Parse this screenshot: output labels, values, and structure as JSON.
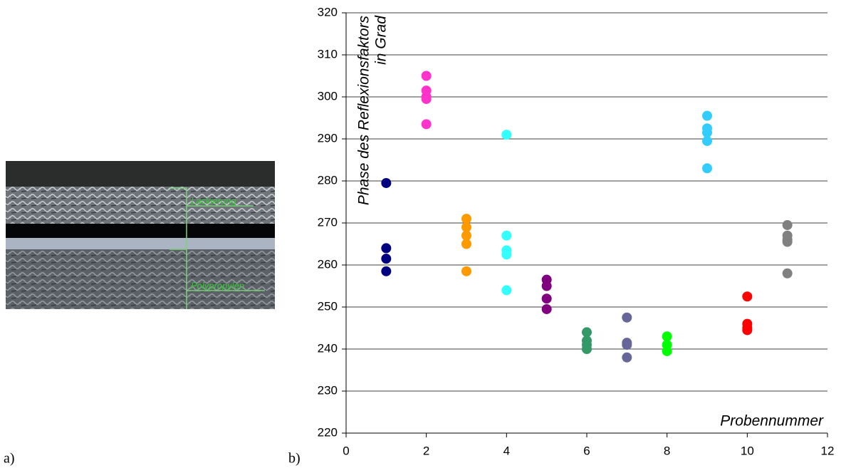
{
  "panels": {
    "a": "a)",
    "b": "b)"
  },
  "photo": {
    "labels": [
      "Lackierung",
      "Polypropylen"
    ]
  },
  "chart_data": {
    "type": "scatter",
    "y_label": [
      "Phase des Reflexionsfaktors",
      "in Grad"
    ],
    "x_label": "Probennummer",
    "xlim": [
      0,
      12
    ],
    "xticks": [
      0,
      2,
      4,
      6,
      8,
      10,
      12
    ],
    "ylim": [
      220,
      320
    ],
    "yticks": [
      220,
      230,
      240,
      250,
      260,
      270,
      280,
      290,
      300,
      310,
      320
    ],
    "grid": true,
    "series": [
      {
        "color": "#000080",
        "x": [
          1,
          1,
          1,
          1
        ],
        "values": [
          279.5,
          264,
          261.5,
          258.5
        ]
      },
      {
        "color": "#ff33cc",
        "x": [
          2,
          2,
          2,
          2,
          2
        ],
        "values": [
          305,
          301.5,
          300,
          299.5,
          293.5
        ]
      },
      {
        "color": "#ff9900",
        "x": [
          3,
          3,
          3,
          3,
          3
        ],
        "values": [
          271,
          269,
          267,
          265,
          258.5
        ]
      },
      {
        "color": "#33ffff",
        "x": [
          4,
          4,
          4,
          4,
          4
        ],
        "values": [
          291,
          267,
          263.5,
          262.5,
          254
        ]
      },
      {
        "color": "#800080",
        "x": [
          5,
          5,
          5,
          5
        ],
        "values": [
          256.5,
          255,
          252,
          249.5
        ]
      },
      {
        "color": "#339966",
        "x": [
          6,
          6,
          6,
          6
        ],
        "values": [
          244,
          242,
          241,
          240
        ]
      },
      {
        "color": "#666699",
        "x": [
          7,
          7,
          7,
          7
        ],
        "values": [
          247.5,
          241.5,
          241,
          238
        ]
      },
      {
        "color": "#00ff00",
        "x": [
          8,
          8,
          8
        ],
        "values": [
          243,
          241,
          239.5
        ]
      },
      {
        "color": "#33ccff",
        "x": [
          9,
          9,
          9,
          9,
          9
        ],
        "values": [
          295.5,
          292.5,
          291.5,
          289.5,
          283
        ]
      },
      {
        "color": "#ff0000",
        "x": [
          10,
          10,
          10,
          10
        ],
        "values": [
          252.5,
          246,
          245,
          244.5
        ]
      },
      {
        "color": "#808080",
        "x": [
          11,
          11,
          11,
          11,
          11
        ],
        "values": [
          269.5,
          267,
          266,
          265.5,
          258
        ]
      }
    ]
  }
}
